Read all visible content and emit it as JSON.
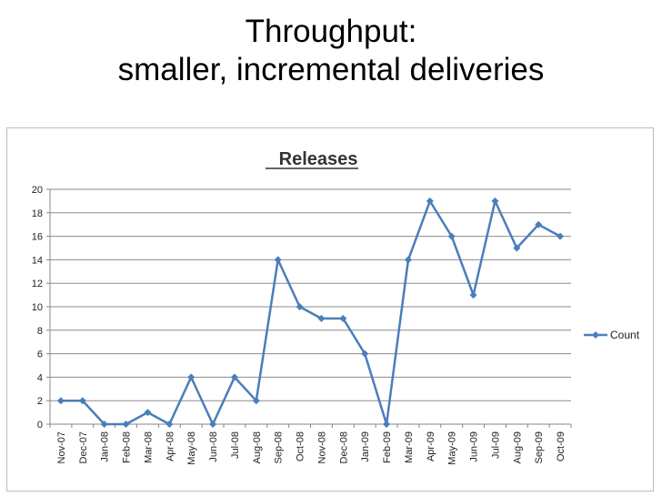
{
  "slide": {
    "title_line1": "Throughput:",
    "title_line2": "smaller, incremental deliveries"
  },
  "chart_data": {
    "type": "line",
    "title": "Releases",
    "categories": [
      "Nov-07",
      "Dec-07",
      "Jan-08",
      "Feb-08",
      "Mar-08",
      "Apr-08",
      "May-08",
      "Jun-08",
      "Jul-08",
      "Aug-08",
      "Sep-08",
      "Oct-08",
      "Nov-08",
      "Dec-08",
      "Jan-09",
      "Feb-09",
      "Mar-09",
      "Apr-09",
      "May-09",
      "Jun-09",
      "Jul-09",
      "Aug-09",
      "Sep-09",
      "Oct-09"
    ],
    "series": [
      {
        "name": "Count",
        "values": [
          2,
          2,
          0,
          0,
          1,
          0,
          4,
          0,
          4,
          2,
          14,
          10,
          9,
          9,
          6,
          0,
          14,
          19,
          16,
          11,
          19,
          15,
          17,
          16
        ],
        "color": "#4a7ebb"
      }
    ],
    "ylim": [
      0,
      20
    ],
    "yticks": [
      0,
      2,
      4,
      6,
      8,
      10,
      12,
      14,
      16,
      18,
      20
    ],
    "grid": true,
    "legend": "right",
    "xlabel": "",
    "ylabel": ""
  },
  "colors": {
    "series": "#4a7ebb",
    "grid": "#8c8c8c",
    "axis": "#888888"
  }
}
